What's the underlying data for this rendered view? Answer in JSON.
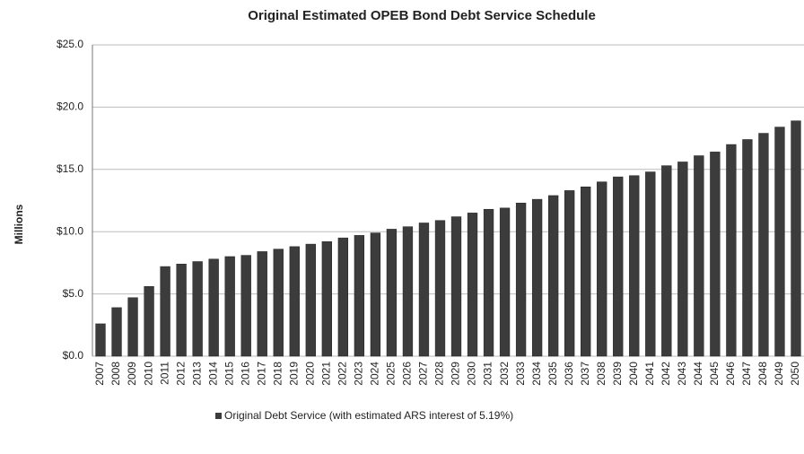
{
  "chart_data": {
    "type": "bar",
    "title": "Original Estimated OPEB Bond Debt Service Schedule",
    "y_label": "Millions",
    "categories": [
      "2007",
      "2008",
      "2009",
      "2010",
      "2011",
      "2012",
      "2013",
      "2014",
      "2015",
      "2016",
      "2017",
      "2018",
      "2019",
      "2020",
      "2021",
      "2022",
      "2023",
      "2024",
      "2025",
      "2026",
      "2027",
      "2028",
      "2029",
      "2030",
      "2031",
      "2032",
      "2033",
      "2034",
      "2035",
      "2036",
      "2037",
      "2038",
      "2039",
      "2040",
      "2041",
      "2042",
      "2043",
      "2044",
      "2045",
      "2046",
      "2047",
      "2048",
      "2049",
      "2050"
    ],
    "series": [
      {
        "name": "Original Debt Service (with estimated ARS interest of 5.19%)",
        "color": "#3c3c3c",
        "values": [
          2.6,
          3.9,
          4.7,
          5.6,
          7.2,
          7.4,
          7.6,
          7.8,
          8.0,
          8.1,
          8.4,
          8.6,
          8.8,
          9.0,
          9.2,
          9.5,
          9.7,
          9.9,
          10.2,
          10.4,
          10.7,
          10.9,
          11.2,
          11.5,
          11.8,
          11.9,
          12.3,
          12.6,
          12.9,
          13.3,
          13.6,
          14.0,
          14.4,
          14.5,
          14.8,
          15.3,
          15.6,
          16.1,
          16.4,
          17.0,
          17.4,
          17.9,
          18.4,
          18.9
        ]
      }
    ],
    "ylim": [
      0,
      25
    ],
    "yticks": [
      {
        "value": 0,
        "label": "$0.0"
      },
      {
        "value": 5,
        "label": "$5.0"
      },
      {
        "value": 10,
        "label": "$10.0"
      },
      {
        "value": 15,
        "label": "$15.0"
      },
      {
        "value": 20,
        "label": "$20.0"
      },
      {
        "value": 25,
        "label": "$25.0"
      }
    ],
    "grid": true
  }
}
